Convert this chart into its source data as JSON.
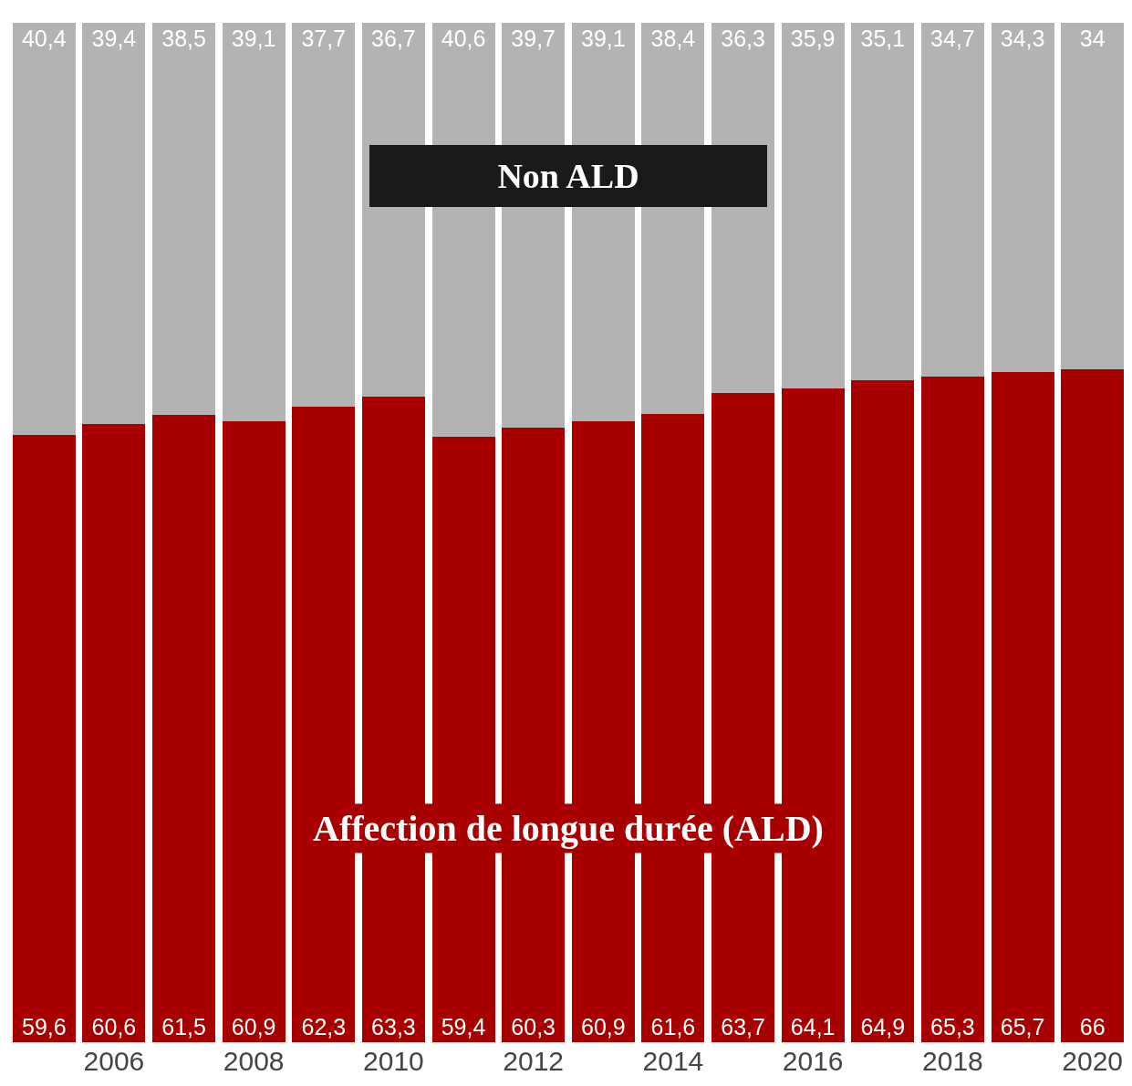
{
  "chart_data": {
    "type": "bar",
    "stacked": true,
    "categories": [
      null,
      "2006",
      null,
      "2008",
      null,
      "2010",
      null,
      "2012",
      null,
      "2014",
      null,
      "2016",
      null,
      "2018",
      null,
      "2020"
    ],
    "series": [
      {
        "name": "Affection de longue durée (ALD)",
        "color": "#a80000",
        "values": [
          59.6,
          60.6,
          61.5,
          60.9,
          62.3,
          63.3,
          59.4,
          60.3,
          60.9,
          61.6,
          63.7,
          64.1,
          64.9,
          65.3,
          65.7,
          66
        ],
        "value_labels": [
          "59,6",
          "60,6",
          "61,5",
          "60,9",
          "62,3",
          "63,3",
          "59,4",
          "60,3",
          "60,9",
          "61,6",
          "63,7",
          "64,1",
          "64,9",
          "65,3",
          "65,7",
          "66"
        ]
      },
      {
        "name": "Non ALD",
        "color": "#b3b3b3",
        "values": [
          40.4,
          39.4,
          38.5,
          39.1,
          37.7,
          36.7,
          40.6,
          39.7,
          39.1,
          38.4,
          36.3,
          35.9,
          35.1,
          34.7,
          34.3,
          34
        ],
        "value_labels": [
          "40,4",
          "39,4",
          "38,5",
          "39,1",
          "37,7",
          "36,7",
          "40,6",
          "39,7",
          "39,1",
          "38,4",
          "36,3",
          "35,9",
          "35,1",
          "34,7",
          "34,3",
          "34"
        ]
      }
    ],
    "ylim": [
      0,
      100
    ],
    "tick_labels": "x"
  }
}
